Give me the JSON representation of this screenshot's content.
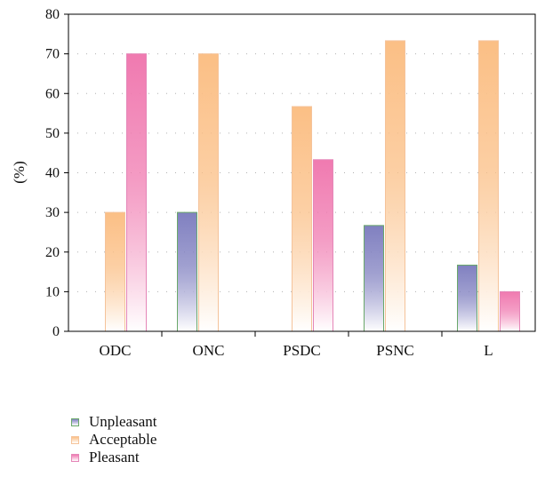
{
  "chart_data": {
    "type": "bar",
    "categories": [
      "ODC",
      "ONC",
      "PSDC",
      "PSNC",
      "L"
    ],
    "series": [
      {
        "name": "Unpleasant",
        "values": [
          0,
          30,
          0,
          26.7,
          16.7
        ],
        "color": "#8080c0",
        "border": "#6aa86a"
      },
      {
        "name": "Acceptable",
        "values": [
          30,
          70,
          56.7,
          73.3,
          73.3
        ],
        "color": "#fbbf85",
        "border": "#f5c39a"
      },
      {
        "name": "Pleasant",
        "values": [
          70,
          0,
          43.3,
          0,
          10
        ],
        "color": "#f07ab0",
        "border": "#e586b8"
      }
    ],
    "ylabel": "(%)",
    "ylim": [
      0,
      80
    ],
    "yticks": [
      0,
      10,
      20,
      30,
      40,
      50,
      60,
      70,
      80
    ],
    "grid": "dotted-horizontal",
    "legend": "bottom-left"
  }
}
